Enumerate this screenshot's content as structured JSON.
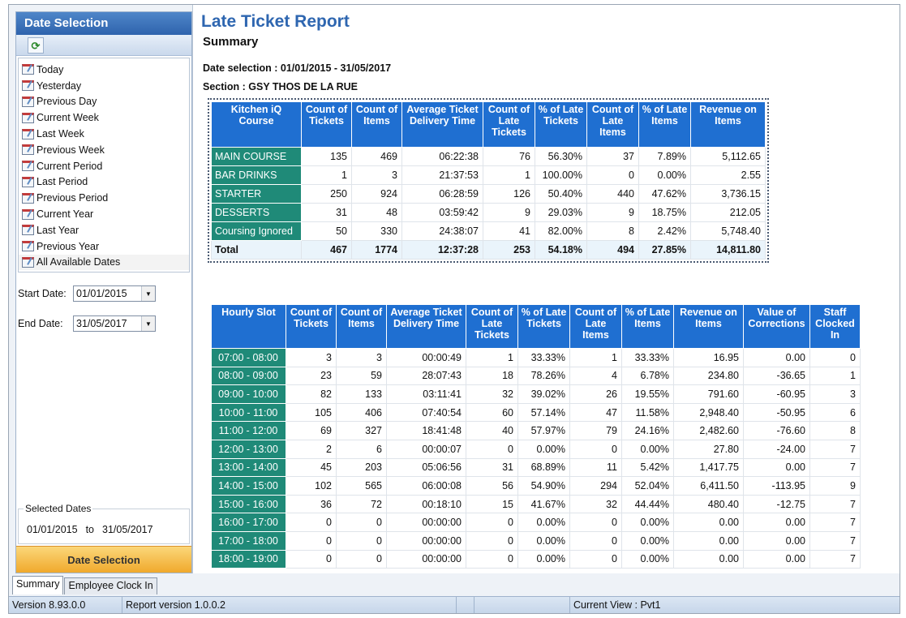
{
  "left_panel": {
    "title": "Date Selection",
    "date_options": [
      "Today",
      "Yesterday",
      "Previous Day",
      "Current Week",
      "Last Week",
      "Previous Week",
      "Current Period",
      "Last Period",
      "Previous Period",
      "Current Year",
      "Last Year",
      "Previous Year",
      "All Available Dates"
    ],
    "selected_option": "All Available Dates",
    "start_label": "Start Date:",
    "start_value": "01/01/2015",
    "end_label": "End Date:",
    "end_value": "31/05/2017",
    "selected_dates_label": "Selected Dates",
    "selected_from": "01/01/2015",
    "selected_to_word": "to",
    "selected_to": "31/05/2017",
    "button_label": "Date Selection"
  },
  "report": {
    "title": "Late Ticket Report",
    "subtitle": "Summary",
    "date_selection": "Date selection : 01/01/2015 - 31/05/2017",
    "section": "Section : GSY THOS DE LA RUE"
  },
  "summary_table": {
    "headers": [
      "Kitchen iQ Course",
      "Count of Tickets",
      "Count of Items",
      "Average Ticket Delivery Time",
      "Count of Late Tickets",
      "% of Late Tickets",
      "Count of Late Items",
      "% of Late Items",
      "Revenue on Items"
    ],
    "rows": [
      [
        "MAIN COURSE",
        "135",
        "469",
        "06:22:38",
        "76",
        "56.30%",
        "37",
        "7.89%",
        "5,112.65"
      ],
      [
        "BAR DRINKS",
        "1",
        "3",
        "21:37:53",
        "1",
        "100.00%",
        "0",
        "0.00%",
        "2.55"
      ],
      [
        "STARTER",
        "250",
        "924",
        "06:28:59",
        "126",
        "50.40%",
        "440",
        "47.62%",
        "3,736.15"
      ],
      [
        "DESSERTS",
        "31",
        "48",
        "03:59:42",
        "9",
        "29.03%",
        "9",
        "18.75%",
        "212.05"
      ],
      [
        "Coursing Ignored",
        "50",
        "330",
        "24:38:07",
        "41",
        "82.00%",
        "8",
        "2.42%",
        "5,748.40"
      ]
    ],
    "total": [
      "Total",
      "467",
      "1774",
      "12:37:28",
      "253",
      "54.18%",
      "494",
      "27.85%",
      "14,811.80"
    ]
  },
  "hourly_table": {
    "headers": [
      "Hourly Slot",
      "Count of Tickets",
      "Count of Items",
      "Average Ticket Delivery Time",
      "Count of Late Tickets",
      "% of Late Tickets",
      "Count of Late Items",
      "% of Late Items",
      "Revenue on Items",
      "Value of Corrections",
      "Staff Clocked In"
    ],
    "rows": [
      [
        "07:00 - 08:00",
        "3",
        "3",
        "00:00:49",
        "1",
        "33.33%",
        "1",
        "33.33%",
        "16.95",
        "0.00",
        "0"
      ],
      [
        "08:00 - 09:00",
        "23",
        "59",
        "28:07:43",
        "18",
        "78.26%",
        "4",
        "6.78%",
        "234.80",
        "-36.65",
        "1"
      ],
      [
        "09:00 - 10:00",
        "82",
        "133",
        "03:11:41",
        "32",
        "39.02%",
        "26",
        "19.55%",
        "791.60",
        "-60.95",
        "3"
      ],
      [
        "10:00 - 11:00",
        "105",
        "406",
        "07:40:54",
        "60",
        "57.14%",
        "47",
        "11.58%",
        "2,948.40",
        "-50.95",
        "6"
      ],
      [
        "11:00 - 12:00",
        "69",
        "327",
        "18:41:48",
        "40",
        "57.97%",
        "79",
        "24.16%",
        "2,482.60",
        "-76.60",
        "8"
      ],
      [
        "12:00 - 13:00",
        "2",
        "6",
        "00:00:07",
        "0",
        "0.00%",
        "0",
        "0.00%",
        "27.80",
        "-24.00",
        "7"
      ],
      [
        "13:00 - 14:00",
        "45",
        "203",
        "05:06:56",
        "31",
        "68.89%",
        "11",
        "5.42%",
        "1,417.75",
        "0.00",
        "7"
      ],
      [
        "14:00 - 15:00",
        "102",
        "565",
        "06:00:08",
        "56",
        "54.90%",
        "294",
        "52.04%",
        "6,411.50",
        "-113.95",
        "9"
      ],
      [
        "15:00 - 16:00",
        "36",
        "72",
        "00:18:10",
        "15",
        "41.67%",
        "32",
        "44.44%",
        "480.40",
        "-12.75",
        "7"
      ],
      [
        "16:00 - 17:00",
        "0",
        "0",
        "00:00:00",
        "0",
        "0.00%",
        "0",
        "0.00%",
        "0.00",
        "0.00",
        "7"
      ],
      [
        "17:00 - 18:00",
        "0",
        "0",
        "00:00:00",
        "0",
        "0.00%",
        "0",
        "0.00%",
        "0.00",
        "0.00",
        "7"
      ],
      [
        "18:00 - 19:00",
        "0",
        "0",
        "00:00:00",
        "0",
        "0.00%",
        "0",
        "0.00%",
        "0.00",
        "0.00",
        "7"
      ]
    ]
  },
  "tabs": [
    "Summary",
    "Employee Clock In"
  ],
  "active_tab": "Summary",
  "status_bar": {
    "version": "Version 8.93.0.0",
    "report_version": "Report version 1.0.0.2",
    "current_view": "Current View : Pvt1"
  }
}
